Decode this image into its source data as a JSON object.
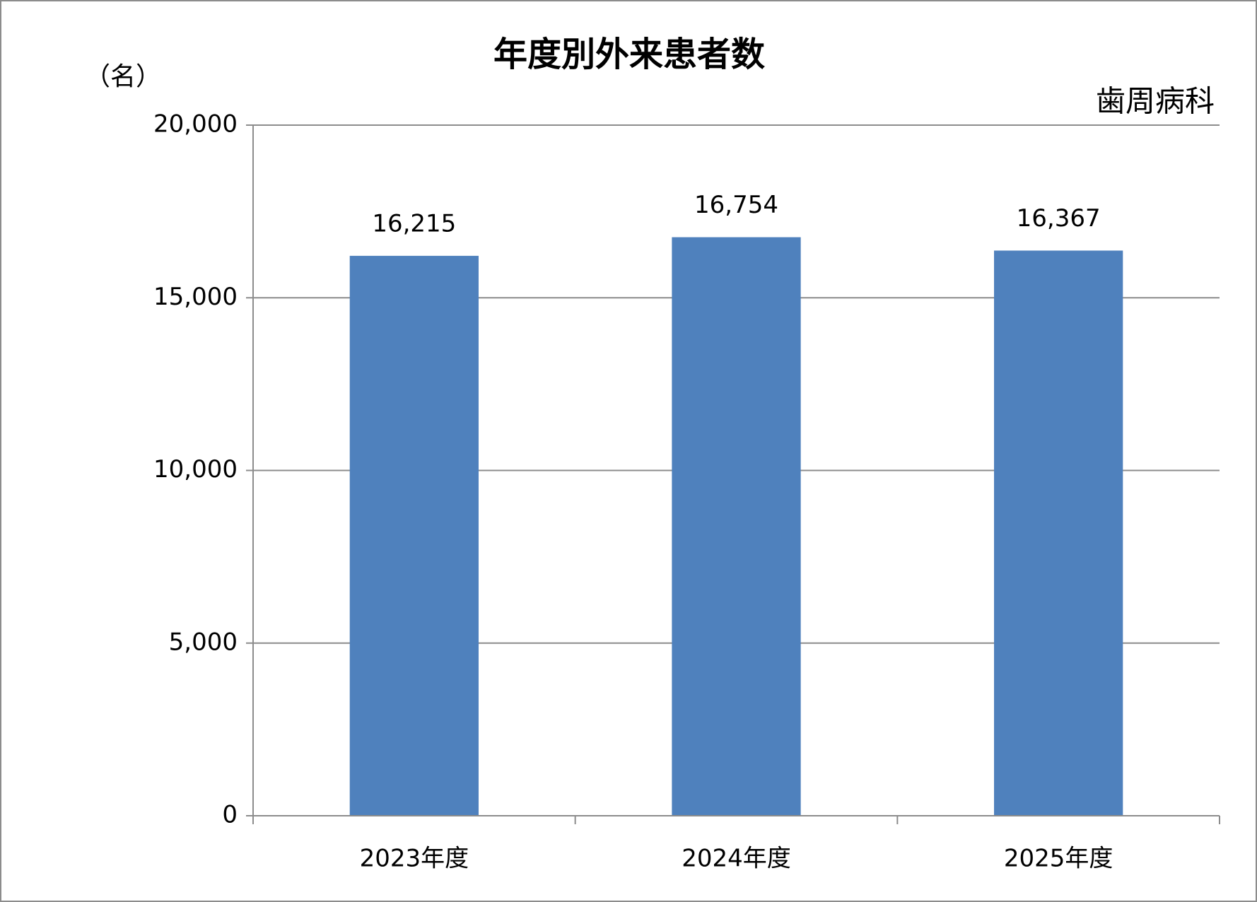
{
  "chart_data": {
    "type": "bar",
    "title": "年度別外来患者数",
    "y_axis_label": "（名）",
    "subtitle": "歯周病科",
    "categories": [
      "2023年度",
      "2024年度",
      "2025年度"
    ],
    "values": [
      16215,
      16754,
      16367
    ],
    "value_labels": [
      "16,215",
      "16,754",
      "16,367"
    ],
    "color": "#4f81bd",
    "ylim": [
      0,
      20000
    ],
    "yticks": [
      0,
      {
        "value": 5000,
        "label": "5,000"
      },
      {
        "value": 10000,
        "label": "10,000"
      },
      {
        "value": 15000,
        "label": "15,000"
      },
      {
        "value": 20000,
        "label": "20,000"
      }
    ],
    "grid": true
  }
}
